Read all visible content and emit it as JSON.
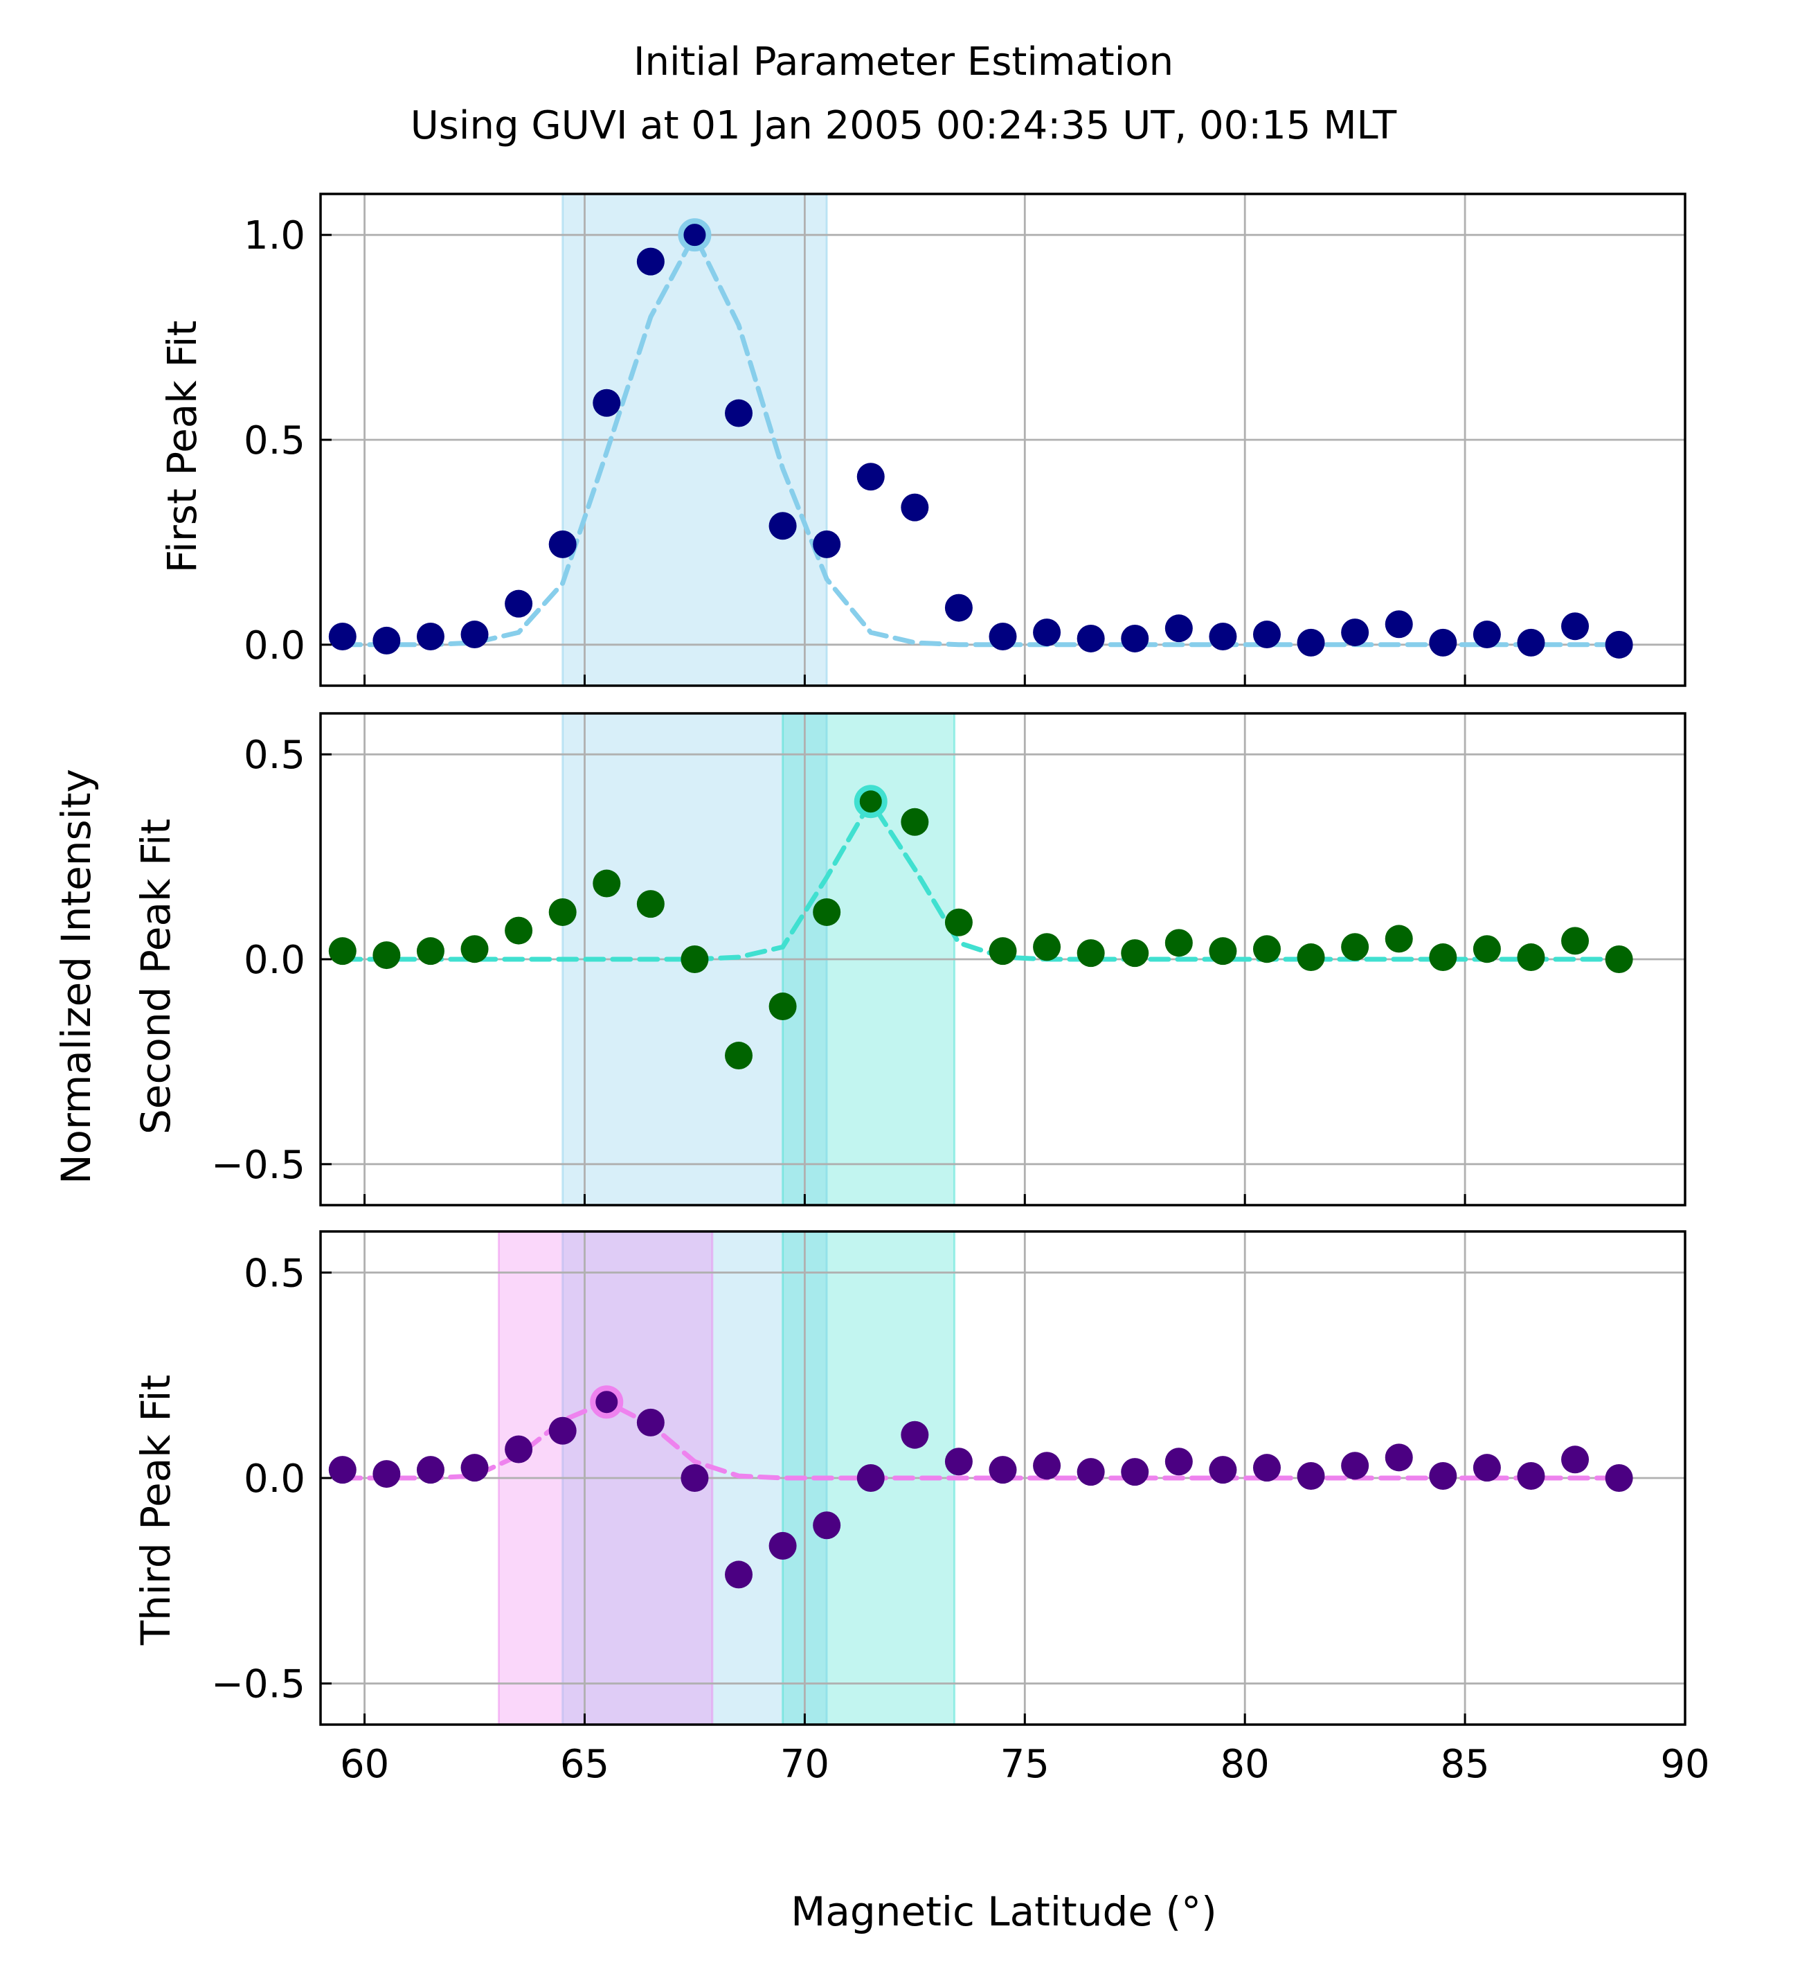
{
  "title_lines": [
    "Initial Parameter Estimation",
    "Using GUVI at 01 Jan 2005 00:24:35 UT, 00:15 MLT"
  ],
  "shared_ylabel": "Normalized Intensity",
  "xlabel": "Magnetic Latitude (°)",
  "chart_data": [
    {
      "type": "scatter",
      "ylabel": "First Peak Fit",
      "xlim": [
        59,
        90
      ],
      "ylim": [
        -0.1,
        1.1
      ],
      "xticks": [
        60,
        65,
        70,
        75,
        80,
        85,
        90
      ],
      "yticks": [
        0.0,
        0.5,
        1.0
      ],
      "ytick_labels": [
        "0.0",
        "0.5",
        "1.0"
      ],
      "grid": true,
      "bands": [
        {
          "x0": 64.5,
          "x1": 70.5,
          "color": "#87ceeb"
        }
      ],
      "point_color": "#000080",
      "x": [
        59.5,
        60.5,
        61.5,
        62.5,
        63.5,
        64.5,
        65.5,
        66.5,
        67.5,
        68.5,
        69.5,
        70.5,
        71.5,
        72.5,
        73.5,
        74.5,
        75.5,
        76.5,
        77.5,
        78.5,
        79.5,
        80.5,
        81.5,
        82.5,
        83.5,
        84.5,
        85.5,
        86.5,
        87.5,
        88.5
      ],
      "y": [
        0.02,
        0.01,
        0.02,
        0.025,
        0.1,
        0.245,
        0.59,
        0.935,
        1.0,
        0.565,
        0.29,
        0.245,
        0.41,
        0.335,
        0.09,
        0.02,
        0.03,
        0.015,
        0.015,
        0.04,
        0.02,
        0.025,
        0.005,
        0.03,
        0.05,
        0.005,
        0.025,
        0.005,
        0.045,
        0.0
      ],
      "fit_color": "#87ceeb",
      "fit_x": [
        59.5,
        60.5,
        61.5,
        62.5,
        63.5,
        64.5,
        65.5,
        66.5,
        67.5,
        68.5,
        69.5,
        70.5,
        71.5,
        72.5,
        73.5,
        74.5,
        75.5,
        76.5,
        77.5,
        78.5,
        79.5,
        80.5,
        81.5,
        82.5,
        83.5,
        84.5,
        85.5,
        86.5,
        87.5,
        88.5
      ],
      "fit_y": [
        0.0,
        0.0,
        0.0,
        0.005,
        0.03,
        0.15,
        0.47,
        0.8,
        1.0,
        0.78,
        0.43,
        0.16,
        0.03,
        0.005,
        0.0,
        0.0,
        0.0,
        0.0,
        0.0,
        0.0,
        0.0,
        0.0,
        0.0,
        0.0,
        0.0,
        0.0,
        0.0,
        0.0,
        0.0,
        0.0
      ],
      "peak": {
        "x": 67.5,
        "y": 1.0
      }
    },
    {
      "type": "scatter",
      "ylabel": "Second Peak Fit",
      "xlim": [
        59,
        90
      ],
      "ylim": [
        -0.6,
        0.6
      ],
      "xticks": [
        60,
        65,
        70,
        75,
        80,
        85,
        90
      ],
      "yticks": [
        -0.5,
        0.0,
        0.5
      ],
      "ytick_labels": [
        "−0.5",
        "0.0",
        "0.5"
      ],
      "grid": true,
      "bands": [
        {
          "x0": 64.5,
          "x1": 70.5,
          "color": "#87ceeb"
        },
        {
          "x0": 69.5,
          "x1": 73.4,
          "color": "#40e0d0"
        }
      ],
      "point_color": "#006400",
      "x": [
        59.5,
        60.5,
        61.5,
        62.5,
        63.5,
        64.5,
        65.5,
        66.5,
        67.5,
        68.5,
        69.5,
        70.5,
        71.5,
        72.5,
        73.5,
        74.5,
        75.5,
        76.5,
        77.5,
        78.5,
        79.5,
        80.5,
        81.5,
        82.5,
        83.5,
        84.5,
        85.5,
        86.5,
        87.5,
        88.5
      ],
      "y": [
        0.02,
        0.01,
        0.02,
        0.025,
        0.07,
        0.115,
        0.185,
        0.135,
        0.0,
        -0.235,
        -0.115,
        0.115,
        0.385,
        0.335,
        0.09,
        0.02,
        0.03,
        0.015,
        0.015,
        0.04,
        0.02,
        0.025,
        0.005,
        0.03,
        0.05,
        0.005,
        0.025,
        0.005,
        0.045,
        0.0
      ],
      "fit_color": "#40e0d0",
      "fit_x": [
        59.5,
        60.5,
        61.5,
        62.5,
        63.5,
        64.5,
        65.5,
        66.5,
        67.5,
        68.5,
        69.5,
        70.5,
        71.5,
        72.5,
        73.5,
        74.5,
        75.5,
        76.5,
        77.5,
        78.5,
        79.5,
        80.5,
        81.5,
        82.5,
        83.5,
        84.5,
        85.5,
        86.5,
        87.5,
        88.5
      ],
      "fit_y": [
        0.0,
        0.0,
        0.0,
        0.0,
        0.0,
        0.0,
        0.0,
        0.0,
        0.0,
        0.005,
        0.03,
        0.2,
        0.385,
        0.22,
        0.04,
        0.005,
        0.0,
        0.0,
        0.0,
        0.0,
        0.0,
        0.0,
        0.0,
        0.0,
        0.0,
        0.0,
        0.0,
        0.0,
        0.0,
        0.0
      ],
      "peak": {
        "x": 71.5,
        "y": 0.385
      }
    },
    {
      "type": "scatter",
      "ylabel": "Third Peak Fit",
      "xlim": [
        59,
        90
      ],
      "ylim": [
        -0.6,
        0.6
      ],
      "xticks": [
        60,
        65,
        70,
        75,
        80,
        85,
        90
      ],
      "yticks": [
        -0.5,
        0.0,
        0.5
      ],
      "ytick_labels": [
        "−0.5",
        "0.0",
        "0.5"
      ],
      "xtick_labels": [
        "60",
        "65",
        "70",
        "75",
        "80",
        "85",
        "90"
      ],
      "grid": true,
      "bands": [
        {
          "x0": 64.5,
          "x1": 70.5,
          "color": "#87ceeb"
        },
        {
          "x0": 69.5,
          "x1": 73.4,
          "color": "#40e0d0"
        },
        {
          "x0": 63.05,
          "x1": 67.9,
          "color": "#ee82ee"
        }
      ],
      "point_color": "#4b0082",
      "x": [
        59.5,
        60.5,
        61.5,
        62.5,
        63.5,
        64.5,
        65.5,
        66.5,
        67.5,
        68.5,
        69.5,
        70.5,
        71.5,
        72.5,
        73.5,
        74.5,
        75.5,
        76.5,
        77.5,
        78.5,
        79.5,
        80.5,
        81.5,
        82.5,
        83.5,
        84.5,
        85.5,
        86.5,
        87.5,
        88.5
      ],
      "y": [
        0.02,
        0.01,
        0.02,
        0.025,
        0.07,
        0.115,
        0.185,
        0.135,
        0.0,
        -0.235,
        -0.165,
        -0.115,
        0.0,
        0.105,
        0.04,
        0.02,
        0.03,
        0.015,
        0.015,
        0.04,
        0.02,
        0.025,
        0.005,
        0.03,
        0.05,
        0.005,
        0.025,
        0.005,
        0.045,
        0.0
      ],
      "fit_color": "#ee82ee",
      "fit_x": [
        59.5,
        60.5,
        61.5,
        62.5,
        63.5,
        64.5,
        65.5,
        66.5,
        67.5,
        68.5,
        69.5,
        70.5,
        71.5,
        72.5,
        73.5,
        74.5,
        75.5,
        76.5,
        77.5,
        78.5,
        79.5,
        80.5,
        81.5,
        82.5,
        83.5,
        84.5,
        85.5,
        86.5,
        87.5,
        88.5
      ],
      "fit_y": [
        0.0,
        0.0,
        0.0,
        0.005,
        0.055,
        0.14,
        0.185,
        0.13,
        0.04,
        0.005,
        0.0,
        0.0,
        0.0,
        0.0,
        0.0,
        0.0,
        0.0,
        0.0,
        0.0,
        0.0,
        0.0,
        0.0,
        0.0,
        0.0,
        0.0,
        0.0,
        0.0,
        0.0,
        0.0,
        0.0
      ],
      "peak": {
        "x": 65.5,
        "y": 0.185
      }
    }
  ]
}
